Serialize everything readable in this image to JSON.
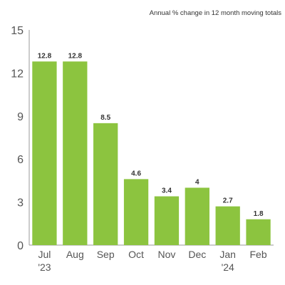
{
  "chart_data": {
    "type": "bar",
    "subtitle": "Annual % change in 12 month moving totals",
    "categories": [
      "Jul",
      "Aug",
      "Sep",
      "Oct",
      "Nov",
      "Dec",
      "Jan",
      "Feb"
    ],
    "category_sublabels": [
      "'23",
      "",
      "",
      "",
      "",
      "",
      "'24",
      ""
    ],
    "values": [
      12.8,
      12.8,
      8.5,
      4.6,
      3.4,
      4,
      2.7,
      1.8
    ],
    "value_labels": [
      "12.8",
      "12.8",
      "8.5",
      "4.6",
      "3.4",
      "4",
      "2.7",
      "1.8"
    ],
    "yticks": [
      "0",
      "3",
      "6",
      "9",
      "12",
      "15"
    ],
    "ylim": [
      0,
      15
    ],
    "xlabel": "",
    "ylabel": "",
    "grid": false,
    "bar_color": "#8cc43f"
  }
}
